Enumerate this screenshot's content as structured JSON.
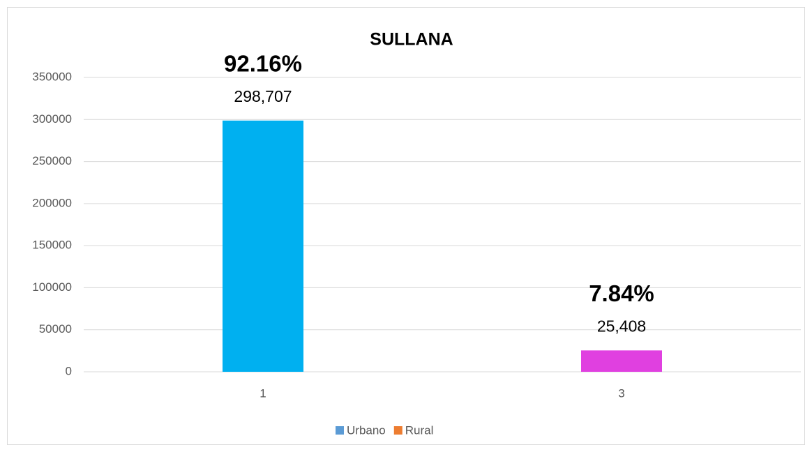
{
  "chart_data": {
    "type": "bar",
    "title": "SULLANA",
    "categories": [
      "1",
      "3"
    ],
    "values": [
      298707,
      25408
    ],
    "value_labels": [
      "298,707",
      "25,408"
    ],
    "annotations": [
      "92.16%",
      "7.84%"
    ],
    "colors": [
      "#00b0f0",
      "#e040e0"
    ],
    "legend": [
      {
        "name": "Urbano",
        "color": "#5b9bd5"
      },
      {
        "name": "Rural",
        "color": "#ed7d31"
      }
    ],
    "ylim": [
      0,
      350000
    ],
    "yticks": [
      0,
      50000,
      100000,
      150000,
      200000,
      250000,
      300000,
      350000
    ],
    "grid": true
  }
}
